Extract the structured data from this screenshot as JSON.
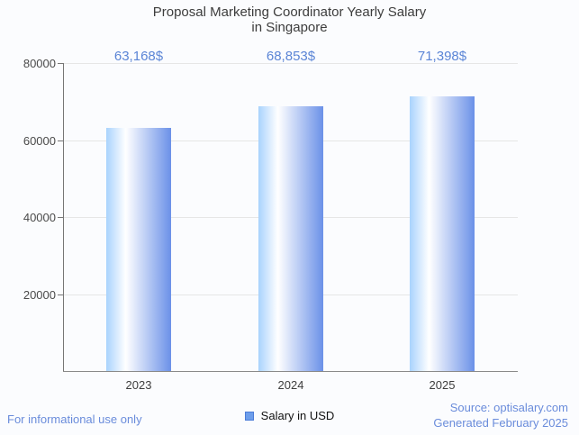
{
  "title": {
    "line1": "Proposal Marketing Coordinator Yearly Salary",
    "line2": "in Singapore"
  },
  "chart_data": {
    "type": "bar",
    "title": "Proposal Marketing Coordinator Yearly Salary in Singapore",
    "categories": [
      "2023",
      "2024",
      "2025"
    ],
    "values": [
      63168,
      68853,
      71398
    ],
    "value_labels": [
      "63,168$",
      "68,853$",
      "71,398$"
    ],
    "series_name": "Salary in USD",
    "xlabel": "",
    "ylabel": "",
    "ylim": [
      0,
      80000
    ],
    "yticks": [
      20000,
      40000,
      60000,
      80000
    ],
    "ytick_labels": [
      "20000",
      "40000",
      "60000",
      "80000"
    ],
    "grid": true,
    "legend_position": "bottom",
    "bar_color_left": "#a9d3fd",
    "bar_color_mid": "#ffffff",
    "bar_color_right": "#6b91e8",
    "value_label_color": "#5b85d6"
  },
  "legend": {
    "label": "Salary in USD",
    "swatch_color": "#6d9eeb"
  },
  "footer": {
    "left": "For informational use only",
    "source": "Source: optisalary.com",
    "generated": "Generated February 2025"
  }
}
